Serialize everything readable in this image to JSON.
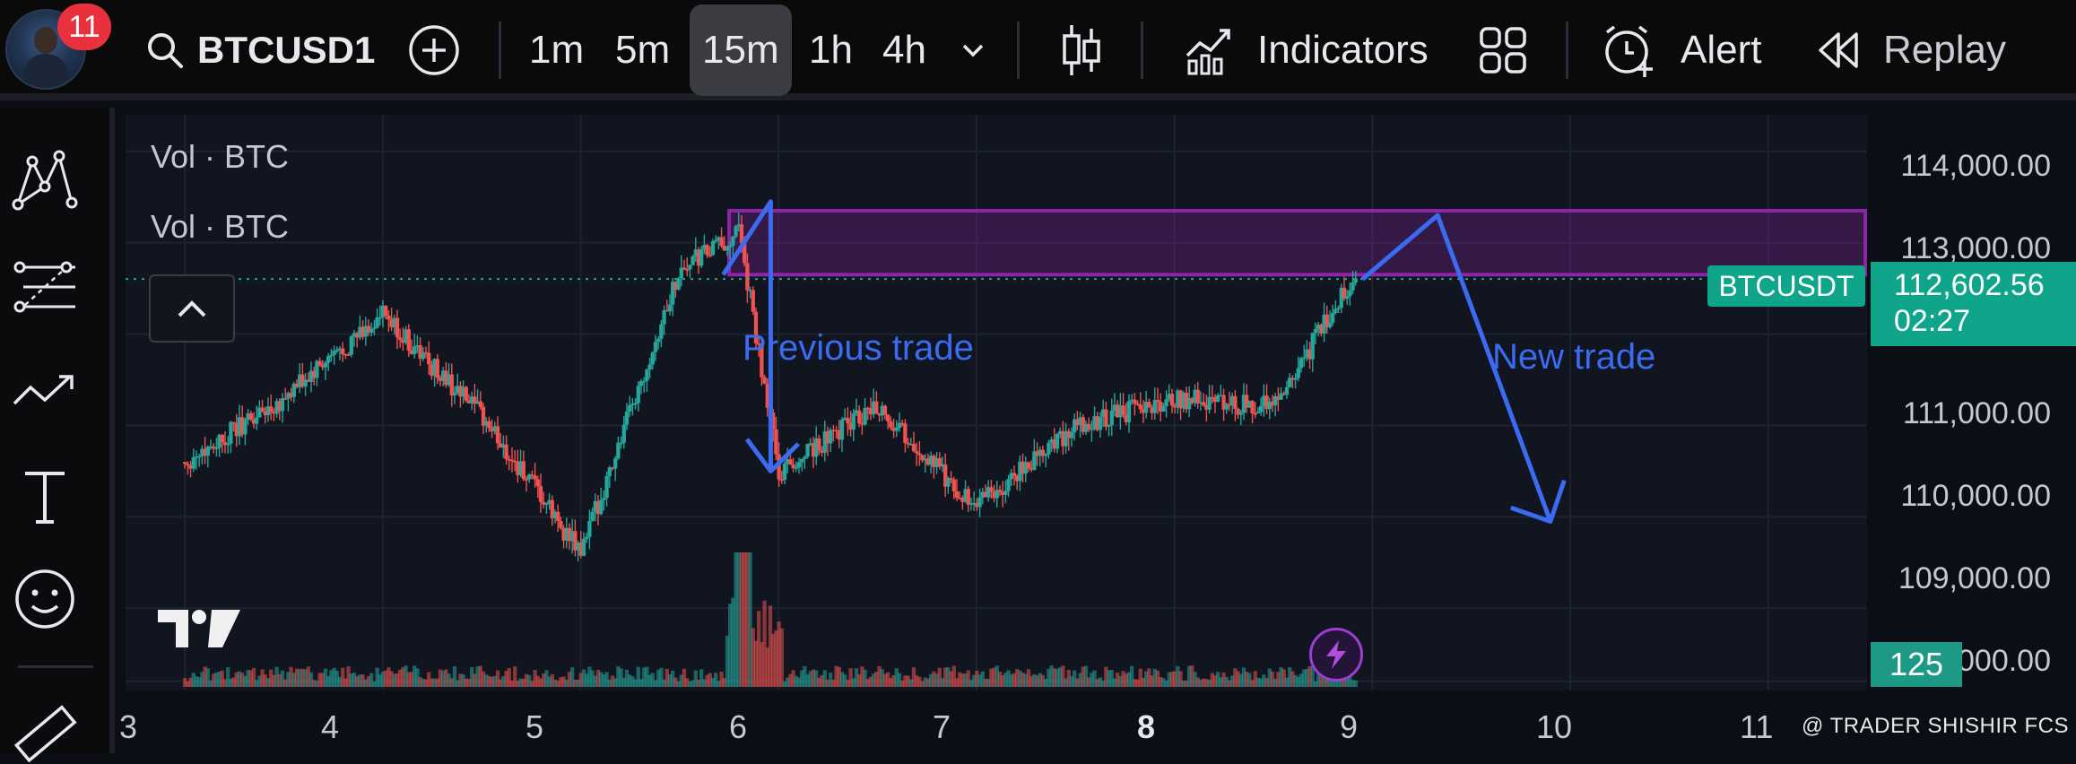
{
  "header": {
    "badge_count": "11",
    "symbol": "BTCUSD1",
    "timeframes": [
      "1m",
      "5m",
      "15m",
      "1h",
      "4h"
    ],
    "active_timeframe": "15m",
    "indicators_label": "Indicators",
    "alert_label": "Alert",
    "replay_label": "Replay"
  },
  "sidebar": {
    "tools": [
      "pattern-tool-icon",
      "fib-tool-icon",
      "trend-line-icon",
      "text-tool-icon",
      "emoji-icon",
      "ruler-icon"
    ]
  },
  "chart": {
    "vol_label_1": "Vol · BTC",
    "vol_label_2": "Vol · BTC",
    "price_axis": [
      "114,000.00",
      "113,000.00",
      "111,000.00",
      "110,000.00",
      "109,000.00",
      "000.00"
    ],
    "time_axis": [
      "3",
      "4",
      "5",
      "6",
      "7",
      "8",
      "9",
      "10",
      "11"
    ],
    "symbol_tag": "BTCUSDT",
    "last_price": "112,602.56",
    "countdown": "02:27",
    "volume_value": "125",
    "annotation_previous": "Previous trade",
    "annotation_new": "New trade",
    "watermark": "@ TRADER SHISHIR FCS",
    "colors": {
      "up": "#26a69a",
      "down": "#ef5350",
      "zone": "#8e24aa",
      "annotation": "#3b6bf0",
      "last_price_bg": "#0fa58a"
    }
  },
  "chart_data": {
    "type": "candlestick",
    "symbol": "BTCUSDT",
    "interval": "15m",
    "x": [
      "3",
      "3.5",
      "4",
      "4.5",
      "5",
      "5.5",
      "5.8",
      "6",
      "6.5",
      "7",
      "7.5",
      "8",
      "8.5",
      "8.9"
    ],
    "y": [
      110600,
      111300,
      112200,
      111100,
      109600,
      112700,
      113100,
      110500,
      111200,
      110100,
      111000,
      111300,
      111200,
      112600
    ],
    "ylim": [
      108100,
      114400
    ],
    "resistance_zone": [
      112650,
      113350
    ],
    "last_price": 112602.56,
    "volume_last": 125
  }
}
